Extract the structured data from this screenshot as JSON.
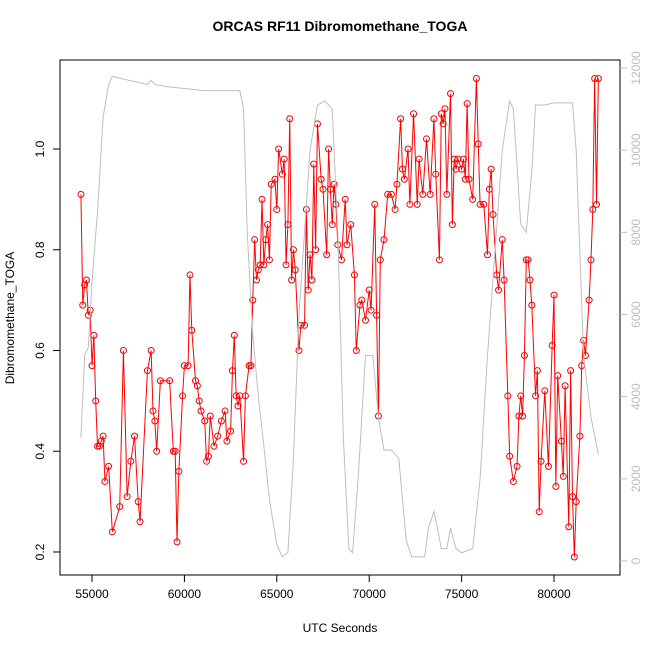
{
  "chart_data": {
    "type": "line",
    "title": "ORCAS RF11 Dibromomethane_TOGA",
    "xlabel": "UTC Seconds",
    "ylabel": "Dibromomethane_TOGA",
    "xlim": [
      53268,
      83571
    ],
    "ylim": [
      0.1543,
      1.1767
    ],
    "y2lim": [
      -341,
      12195
    ],
    "xticks": [
      55000,
      60000,
      65000,
      70000,
      75000,
      80000
    ],
    "yticks": [
      0.2,
      0.4,
      0.6,
      0.8,
      {
        "value": 1,
        "label": "1.0"
      }
    ],
    "y2ticks": [
      0,
      2000,
      4000,
      6000,
      8000,
      10000,
      12000
    ],
    "series": [
      {
        "color": "#ff0000",
        "markers": true,
        "x": [
          54400,
          54500,
          54600,
          54700,
          54800,
          54900,
          55000,
          55100,
          55200,
          55300,
          55400,
          55500,
          55600,
          55700,
          55900,
          56100,
          56500,
          56700,
          56900,
          57100,
          57300,
          57500,
          57600,
          58000,
          58200,
          58300,
          58400,
          58500,
          58700,
          59200,
          59400,
          59500,
          59600,
          59700,
          59900,
          60000,
          60200,
          60300,
          60400,
          60600,
          60700,
          60800,
          60900,
          61100,
          61200,
          61300,
          61400,
          61600,
          61800,
          62000,
          62200,
          62300,
          62500,
          62600,
          62700,
          62800,
          62900,
          63000,
          63200,
          63300,
          63500,
          63600,
          63700,
          63800,
          63900,
          64000,
          64100,
          64200,
          64300,
          64400,
          64500,
          64600,
          64700,
          64900,
          65000,
          65100,
          65300,
          65400,
          65500,
          65600,
          65700,
          65800,
          65900,
          66000,
          66200,
          66300,
          66500,
          66600,
          66700,
          66800,
          66900,
          67000,
          67100,
          67200,
          67400,
          67500,
          67700,
          67800,
          67900,
          68000,
          68100,
          68200,
          68300,
          68500,
          68700,
          68800,
          69000,
          69200,
          69300,
          69500,
          69600,
          69800,
          70000,
          70100,
          70300,
          70400,
          70500,
          70600,
          70800,
          71000,
          71200,
          71400,
          71500,
          71700,
          71800,
          71900,
          72100,
          72200,
          72400,
          72600,
          72700,
          72900,
          73100,
          73300,
          73500,
          73600,
          73800,
          73900,
          74000,
          74100,
          74200,
          74400,
          74500,
          74600,
          74700,
          74800,
          75000,
          75100,
          75200,
          75300,
          75400,
          75600,
          75800,
          75900,
          76000,
          76200,
          76400,
          76500,
          76600,
          76700,
          76900,
          77000,
          77200,
          77300,
          77500,
          77600,
          77800,
          78000,
          78100,
          78200,
          78300,
          78400,
          78500,
          78600,
          78700,
          78800,
          79000,
          79100,
          79200,
          79300,
          79500,
          79700,
          79900,
          80000,
          80100,
          80200,
          80400,
          80500,
          80600,
          80800,
          80900,
          81000,
          81100,
          81200,
          81400,
          81500,
          81600,
          81700,
          81900,
          82000,
          82100,
          82200,
          82300,
          82400
        ],
        "values": [
          0.91,
          0.69,
          0.73,
          0.74,
          0.67,
          0.68,
          0.57,
          0.63,
          0.5,
          0.41,
          0.41,
          0.42,
          0.43,
          0.34,
          0.37,
          0.24,
          0.29,
          0.6,
          0.31,
          0.38,
          0.43,
          0.3,
          0.26,
          0.56,
          0.6,
          0.48,
          0.46,
          0.4,
          0.54,
          0.54,
          0.4,
          0.4,
          0.22,
          0.36,
          0.51,
          0.57,
          0.57,
          0.75,
          0.64,
          0.54,
          0.53,
          0.5,
          0.48,
          0.46,
          0.38,
          0.39,
          0.47,
          0.41,
          0.43,
          0.46,
          0.48,
          0.42,
          0.44,
          0.56,
          0.63,
          0.51,
          0.49,
          0.51,
          0.38,
          0.51,
          0.57,
          0.57,
          0.7,
          0.82,
          0.74,
          0.76,
          0.77,
          0.9,
          0.77,
          0.82,
          0.85,
          0.78,
          0.93,
          0.94,
          0.88,
          1.0,
          0.95,
          0.98,
          0.77,
          0.85,
          1.06,
          0.74,
          0.8,
          0.76,
          0.6,
          0.65,
          0.65,
          0.88,
          0.72,
          0.79,
          0.74,
          0.97,
          0.8,
          1.05,
          0.94,
          0.92,
          0.79,
          1.0,
          0.92,
          0.85,
          0.93,
          0.89,
          0.81,
          0.78,
          0.9,
          0.81,
          0.85,
          0.75,
          0.6,
          0.69,
          0.7,
          0.66,
          0.72,
          0.68,
          0.89,
          0.67,
          0.47,
          0.78,
          0.82,
          0.91,
          0.91,
          0.88,
          0.93,
          1.06,
          0.96,
          0.94,
          1.0,
          0.89,
          1.07,
          0.89,
          0.98,
          0.91,
          1.02,
          0.91,
          1.06,
          0.95,
          0.78,
          1.07,
          1.05,
          1.08,
          0.91,
          1.11,
          0.85,
          0.98,
          0.96,
          0.98,
          0.96,
          0.98,
          0.94,
          1.09,
          0.94,
          0.9,
          1.14,
          1.01,
          0.89,
          0.89,
          0.79,
          0.92,
          0.96,
          0.87,
          0.75,
          0.72,
          0.82,
          0.74,
          0.51,
          0.39,
          0.34,
          0.37,
          0.47,
          0.51,
          0.47,
          0.59,
          0.78,
          0.78,
          0.74,
          0.69,
          0.51,
          0.56,
          0.28,
          0.38,
          0.52,
          0.37,
          0.61,
          0.71,
          0.33,
          0.55,
          0.42,
          0.35,
          0.53,
          0.25,
          0.56,
          0.31,
          0.19,
          0.3,
          0.43,
          0.57,
          0.62,
          0.59,
          0.7,
          0.78,
          0.88,
          1.14,
          0.89,
          1.14
        ]
      },
      {
        "color": "#bebebe",
        "axis": "y2",
        "markers": false,
        "x": [
          54400,
          54600,
          54800,
          55000,
          55300,
          55600,
          55900,
          56100,
          56500,
          57000,
          57500,
          58000,
          58200,
          58400,
          59000,
          60000,
          61000,
          62000,
          63000,
          63200,
          63400,
          63700,
          64000,
          64300,
          64600,
          65000,
          65300,
          65600,
          65900,
          66200,
          66500,
          66800,
          67200,
          67600,
          68000,
          68300,
          68600,
          68900,
          69100,
          69400,
          69800,
          70200,
          70500,
          70800,
          71200,
          71600,
          72000,
          72300,
          73000,
          73200,
          73500,
          73700,
          73900,
          74200,
          74400,
          74700,
          75000,
          75600,
          76000,
          76400,
          76800,
          77200,
          77600,
          77800,
          78200,
          78500,
          78800,
          79000,
          79500,
          80000,
          81000,
          81200,
          81600,
          82000,
          82400
        ],
        "values": [
          3000,
          5000,
          5200,
          6800,
          8500,
          10800,
          11600,
          11800,
          11750,
          11700,
          11650,
          11600,
          11700,
          11600,
          11550,
          11500,
          11450,
          11450,
          11450,
          11000,
          8000,
          5500,
          4000,
          2800,
          1500,
          400,
          100,
          200,
          2500,
          6000,
          8000,
          10000,
          11100,
          11200,
          11000,
          8000,
          3000,
          300,
          200,
          2000,
          5000,
          5000,
          3500,
          2700,
          2700,
          2500,
          500,
          100,
          100,
          800,
          1200,
          800,
          300,
          300,
          800,
          300,
          200,
          300,
          2000,
          5000,
          7500,
          10000,
          11200,
          11000,
          8200,
          8000,
          9500,
          11100,
          11100,
          11150,
          11150,
          10000,
          5000,
          3500,
          2600
        ]
      }
    ]
  }
}
